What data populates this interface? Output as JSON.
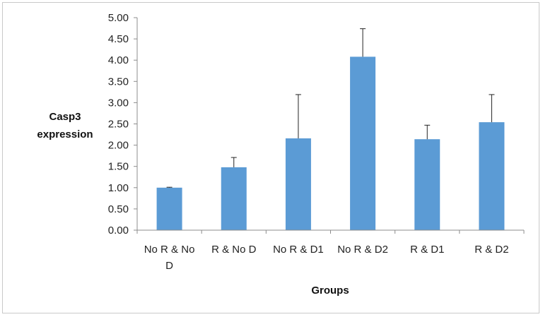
{
  "chart_data": {
    "type": "bar",
    "title": "",
    "xlabel": "Groups",
    "ylabel_lines": [
      "Casp3",
      "expression"
    ],
    "categories": [
      [
        "No R & No",
        "D"
      ],
      [
        "R & No D"
      ],
      [
        "No R & D1"
      ],
      [
        "No R & D2"
      ],
      [
        "R & D1"
      ],
      [
        "R & D2"
      ]
    ],
    "values": [
      1.0,
      1.48,
      2.16,
      4.08,
      2.14,
      2.54
    ],
    "error_plus": [
      0.01,
      0.23,
      1.03,
      0.66,
      0.33,
      0.65
    ],
    "ylim": [
      0,
      5
    ],
    "yticks": [
      "0.00",
      "0.50",
      "1.00",
      "1.50",
      "2.00",
      "2.50",
      "3.00",
      "3.50",
      "4.00",
      "4.50",
      "5.00"
    ],
    "grid": false,
    "legend": "none",
    "colors": {
      "bar": "#5b9bd5",
      "axis": "#8c8c8c",
      "error_bar": "#222222"
    }
  }
}
